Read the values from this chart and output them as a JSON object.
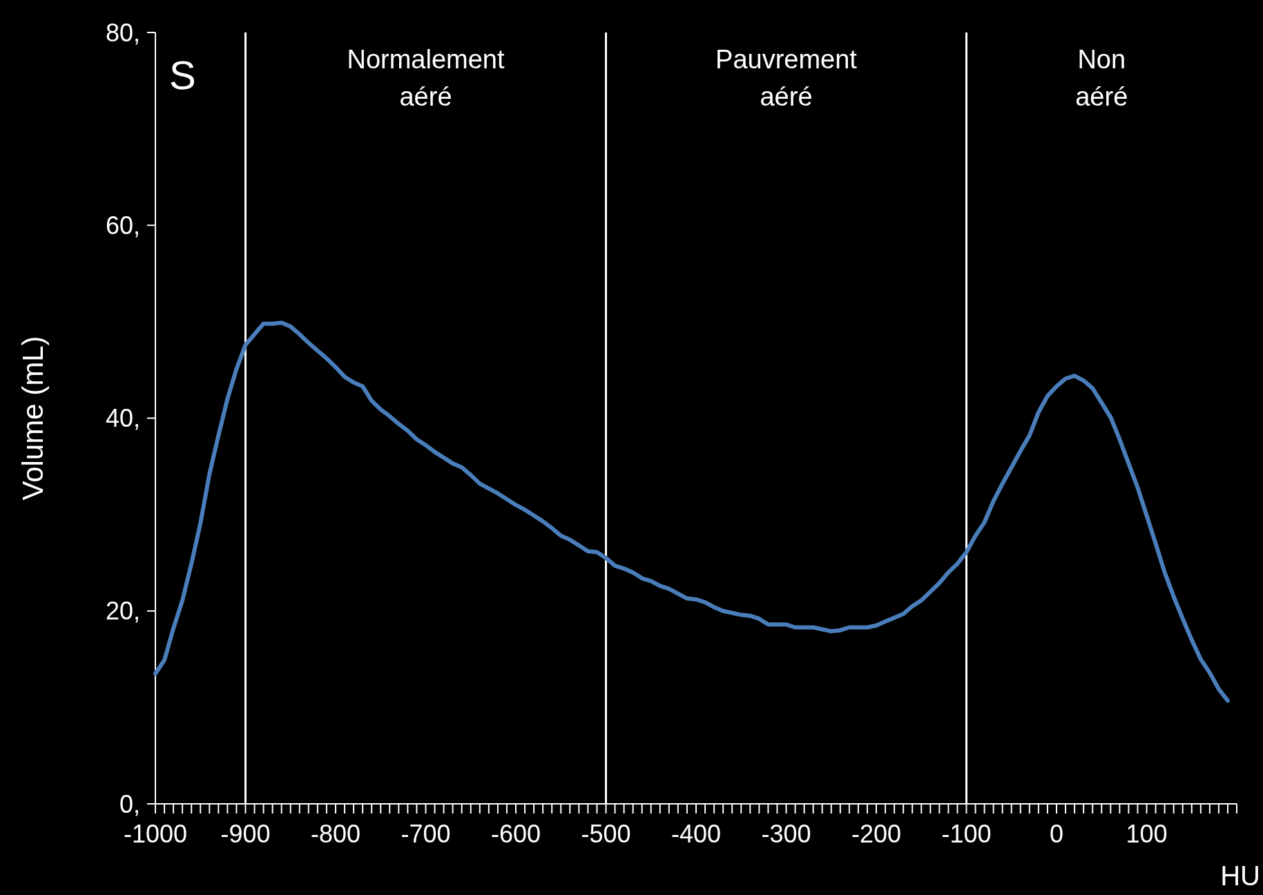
{
  "chart_data": {
    "type": "line",
    "xlabel": "HU",
    "ylabel": "Volume (mL)",
    "x": [
      -1000,
      -990,
      -980,
      -970,
      -960,
      -950,
      -940,
      -930,
      -920,
      -910,
      -900,
      -890,
      -880,
      -870,
      -860,
      -850,
      -840,
      -830,
      -820,
      -810,
      -800,
      -790,
      -780,
      -770,
      -760,
      -750,
      -740,
      -730,
      -720,
      -710,
      -700,
      -690,
      -680,
      -670,
      -660,
      -650,
      -640,
      -630,
      -620,
      -610,
      -600,
      -590,
      -580,
      -570,
      -560,
      -550,
      -540,
      -530,
      -520,
      -510,
      -500,
      -490,
      -480,
      -470,
      -460,
      -450,
      -440,
      -430,
      -420,
      -410,
      -400,
      -390,
      -380,
      -370,
      -360,
      -350,
      -340,
      -330,
      -320,
      -310,
      -300,
      -290,
      -280,
      -270,
      -260,
      -250,
      -240,
      -230,
      -220,
      -210,
      -200,
      -190,
      -180,
      -170,
      -160,
      -150,
      -140,
      -130,
      -120,
      -110,
      -100,
      -90,
      -80,
      -70,
      -60,
      -50,
      -40,
      -30,
      -20,
      -10,
      0,
      10,
      20,
      30,
      40,
      50,
      60,
      70,
      80,
      90,
      100,
      110,
      120,
      130,
      140,
      150,
      160,
      170,
      180,
      190
    ],
    "series": [
      {
        "color": "#4a7ebb",
        "values": [
          13.5,
          14.9,
          18.2,
          21.1,
          24.9,
          29.1,
          34.2,
          38.2,
          42,
          45.1,
          47.6,
          48.7,
          49.8,
          49.8,
          49.9,
          49.5,
          48.7,
          47.8,
          47,
          46.2,
          45.3,
          44.3,
          43.7,
          43.3,
          41.8,
          40.9,
          40.2,
          39.4,
          38.7,
          37.8,
          37.2,
          36.5,
          35.9,
          35.3,
          34.9,
          34.1,
          33.2,
          32.7,
          32.2,
          31.6,
          31,
          30.5,
          29.9,
          29.3,
          28.6,
          27.8,
          27.4,
          26.8,
          26.2,
          26.1,
          25.5,
          24.7,
          24.4,
          24,
          23.4,
          23.1,
          22.6,
          22.3,
          21.8,
          21.3,
          21.2,
          20.9,
          20.4,
          20,
          19.8,
          19.6,
          19.5,
          19.2,
          18.6,
          18.6,
          18.6,
          18.3,
          18.3,
          18.3,
          18.1,
          17.9,
          18,
          18.3,
          18.3,
          18.3,
          18.5,
          18.9,
          19.3,
          19.7,
          20.5,
          21.1,
          22,
          22.9,
          24,
          24.9,
          26.1,
          27.8,
          29.2,
          31.4,
          33.2,
          34.9,
          36.6,
          38.2,
          40.6,
          42.3,
          43.3,
          44.1,
          44.4,
          43.9,
          43.1,
          41.6,
          40.1,
          37.8,
          35.3,
          32.8,
          29.9,
          27,
          24,
          21.5,
          19.2,
          17,
          15,
          13.6,
          11.9,
          10.7
        ]
      }
    ],
    "xlim": [
      -1000,
      200
    ],
    "xticks": [
      -1000,
      {
        "value": -990,
        "label": null
      },
      {
        "value": -980,
        "label": null
      },
      {
        "value": -970,
        "label": null
      },
      {
        "value": -960,
        "label": null
      },
      {
        "value": -950,
        "label": null
      },
      {
        "value": -940,
        "label": null
      },
      {
        "value": -930,
        "label": null
      },
      {
        "value": -920,
        "label": null
      },
      {
        "value": -910,
        "label": null
      },
      -900,
      {
        "value": -890,
        "label": null
      },
      {
        "value": -880,
        "label": null
      },
      {
        "value": -870,
        "label": null
      },
      {
        "value": -860,
        "label": null
      },
      {
        "value": -850,
        "label": null
      },
      {
        "value": -840,
        "label": null
      },
      {
        "value": -830,
        "label": null
      },
      {
        "value": -820,
        "label": null
      },
      {
        "value": -810,
        "label": null
      },
      -800,
      {
        "value": -790,
        "label": null
      },
      {
        "value": -780,
        "label": null
      },
      {
        "value": -770,
        "label": null
      },
      {
        "value": -760,
        "label": null
      },
      {
        "value": -750,
        "label": null
      },
      {
        "value": -740,
        "label": null
      },
      {
        "value": -730,
        "label": null
      },
      {
        "value": -720,
        "label": null
      },
      {
        "value": -710,
        "label": null
      },
      -700,
      {
        "value": -690,
        "label": null
      },
      {
        "value": -680,
        "label": null
      },
      {
        "value": -670,
        "label": null
      },
      {
        "value": -660,
        "label": null
      },
      {
        "value": -650,
        "label": null
      },
      {
        "value": -640,
        "label": null
      },
      {
        "value": -630,
        "label": null
      },
      {
        "value": -620,
        "label": null
      },
      {
        "value": -610,
        "label": null
      },
      -600,
      {
        "value": -590,
        "label": null
      },
      {
        "value": -580,
        "label": null
      },
      {
        "value": -570,
        "label": null
      },
      {
        "value": -560,
        "label": null
      },
      {
        "value": -550,
        "label": null
      },
      {
        "value": -540,
        "label": null
      },
      {
        "value": -530,
        "label": null
      },
      {
        "value": -520,
        "label": null
      },
      {
        "value": -510,
        "label": null
      },
      -500,
      {
        "value": -490,
        "label": null
      },
      {
        "value": -480,
        "label": null
      },
      {
        "value": -470,
        "label": null
      },
      {
        "value": -460,
        "label": null
      },
      {
        "value": -450,
        "label": null
      },
      {
        "value": -440,
        "label": null
      },
      {
        "value": -430,
        "label": null
      },
      {
        "value": -420,
        "label": null
      },
      {
        "value": -410,
        "label": null
      },
      -400,
      {
        "value": -390,
        "label": null
      },
      {
        "value": -380,
        "label": null
      },
      {
        "value": -370,
        "label": null
      },
      {
        "value": -360,
        "label": null
      },
      {
        "value": -350,
        "label": null
      },
      {
        "value": -340,
        "label": null
      },
      {
        "value": -330,
        "label": null
      },
      {
        "value": -320,
        "label": null
      },
      {
        "value": -310,
        "label": null
      },
      -300,
      {
        "value": -290,
        "label": null
      },
      {
        "value": -280,
        "label": null
      },
      {
        "value": -270,
        "label": null
      },
      {
        "value": -260,
        "label": null
      },
      {
        "value": -250,
        "label": null
      },
      {
        "value": -240,
        "label": null
      },
      {
        "value": -230,
        "label": null
      },
      {
        "value": -220,
        "label": null
      },
      {
        "value": -210,
        "label": null
      },
      -200,
      {
        "value": -190,
        "label": null
      },
      {
        "value": -180,
        "label": null
      },
      {
        "value": -170,
        "label": null
      },
      {
        "value": -160,
        "label": null
      },
      {
        "value": -150,
        "label": null
      },
      {
        "value": -140,
        "label": null
      },
      {
        "value": -130,
        "label": null
      },
      {
        "value": -120,
        "label": null
      },
      {
        "value": -110,
        "label": null
      },
      -100,
      {
        "value": -90,
        "label": null
      },
      {
        "value": -80,
        "label": null
      },
      {
        "value": -70,
        "label": null
      },
      {
        "value": -60,
        "label": null
      },
      {
        "value": -50,
        "label": null
      },
      {
        "value": -40,
        "label": null
      },
      {
        "value": -30,
        "label": null
      },
      {
        "value": -20,
        "label": null
      },
      {
        "value": -10,
        "label": null
      },
      0,
      {
        "value": 10,
        "label": null
      },
      {
        "value": 20,
        "label": null
      },
      {
        "value": 30,
        "label": null
      },
      {
        "value": 40,
        "label": null
      },
      {
        "value": 50,
        "label": null
      },
      {
        "value": 60,
        "label": null
      },
      {
        "value": 70,
        "label": null
      },
      {
        "value": 80,
        "label": null
      },
      {
        "value": 90,
        "label": null
      },
      100,
      {
        "value": 110,
        "label": null
      },
      {
        "value": 120,
        "label": null
      },
      {
        "value": 130,
        "label": null
      },
      {
        "value": 140,
        "label": null
      },
      {
        "value": 150,
        "label": null
      },
      {
        "value": 160,
        "label": null
      },
      {
        "value": 170,
        "label": null
      },
      {
        "value": 180,
        "label": null
      },
      {
        "value": 190,
        "label": null
      },
      {
        "value": 200,
        "label": null
      }
    ],
    "ylim": [
      0,
      80
    ],
    "yticks": [
      {
        "value": 0,
        "label": "0,"
      },
      {
        "value": 20,
        "label": "20,"
      },
      {
        "value": 40,
        "label": "40,"
      },
      {
        "value": 60,
        "label": "60,"
      },
      {
        "value": 80,
        "label": "80,"
      }
    ],
    "grid": false,
    "marker": "none",
    "line_style": "solid",
    "ref_lines": [
      {
        "axis": "x",
        "value": -900,
        "color": "#ffffff"
      },
      {
        "axis": "x",
        "value": -500,
        "color": "#ffffff"
      },
      {
        "axis": "x",
        "value": -100,
        "color": "#ffffff"
      }
    ],
    "annotations": [
      "S",
      "Normalement aéré",
      "Pauvrement aéré",
      "Non aéré"
    ]
  }
}
